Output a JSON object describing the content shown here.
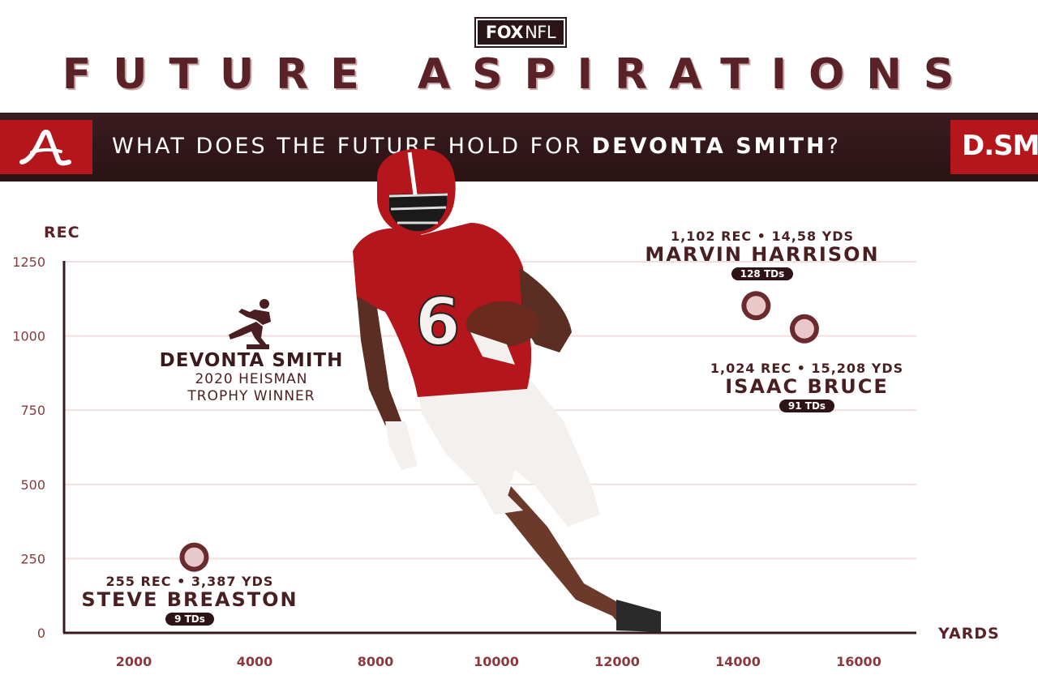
{
  "brand": {
    "fox": "FOX",
    "nfl": "NFL"
  },
  "title": "FUTURE ASPIRATIONS",
  "banner": {
    "prefix": "WHAT DOES THE FUTURE HOLD FOR ",
    "name": "DEVONTA SMITH",
    "suffix": "?",
    "right_text": "D.SMI"
  },
  "colors": {
    "accent": "#b5161c",
    "dark": "#2b1517",
    "text": "#5a2226",
    "grid": "#f2dede",
    "dot": "#e8c8c9"
  },
  "chart_data": {
    "type": "scatter",
    "xlabel": "YARDS",
    "ylabel": "REC",
    "xticks": [
      2000,
      4000,
      8000,
      10000,
      12000,
      14000,
      16000
    ],
    "yticks": [
      0,
      250,
      500,
      750,
      1000,
      1250
    ],
    "ylim": [
      0,
      1250
    ],
    "grid": true,
    "points": [
      {
        "name": "MARVIN HARRISON",
        "rec": 1102,
        "rec_label": "1,102 REC",
        "yds_label": "14,58 YDS",
        "tds": "128 TDs",
        "x_tick_pos": 14300
      },
      {
        "name": "ISAAC BRUCE",
        "rec": 1024,
        "rec_label": "1,024 REC",
        "yds_label": "15,208 YDS",
        "tds": "91 TDs",
        "x_tick_pos": 15100
      },
      {
        "name": "STEVE BREASTON",
        "rec": 255,
        "rec_label": "255 REC",
        "yds_label": "3,387 YDS",
        "tds": "9 TDs",
        "x_tick_pos": 3000
      }
    ],
    "annotation": {
      "name": "DEVONTA SMITH",
      "line1": "2020 HEISMAN",
      "line2": "TROPHY WINNER"
    }
  }
}
